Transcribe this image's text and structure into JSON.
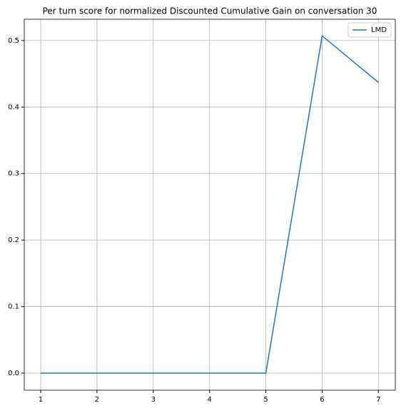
{
  "chart_data": {
    "type": "line",
    "title": "Per turn score for normalized Discounted Cumulative Gain on conversation 30",
    "x": [
      1,
      2,
      3,
      4,
      5,
      6,
      7
    ],
    "series": [
      {
        "name": "LMD",
        "color": "#1f77b4",
        "values": [
          0,
          0,
          0,
          0,
          0,
          0.507,
          0.437
        ]
      }
    ],
    "xlim": [
      0.708,
      7.3
    ],
    "xticks": [
      1,
      2,
      3,
      4,
      5,
      6,
      7
    ],
    "ylim": [
      -0.0257,
      0.532
    ],
    "yticks": [
      {
        "value": 0,
        "label": "0.0"
      },
      0.1,
      0.2,
      0.3,
      0.4,
      0.5
    ],
    "grid": true,
    "legend": "upper right"
  }
}
